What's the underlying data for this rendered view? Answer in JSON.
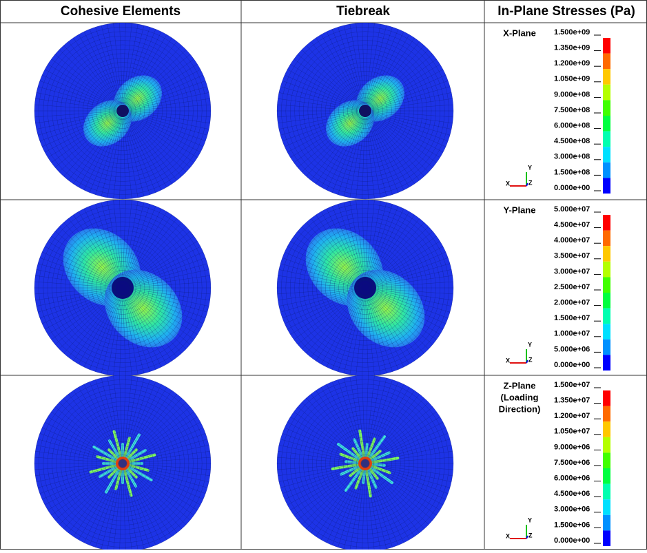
{
  "header": {
    "columns": [
      "Cohesive Elements",
      "Tiebreak",
      "In-Plane Stresses (Pa)"
    ]
  },
  "rows": [
    {
      "plane": [
        "X-Plane"
      ],
      "legend": [
        "1.500e+09",
        "1.350e+09",
        "1.200e+09",
        "1.050e+09",
        "9.000e+08",
        "7.500e+08",
        "6.000e+08",
        "4.500e+08",
        "3.000e+08",
        "1.500e+08",
        "0.000e+00"
      ]
    },
    {
      "plane": [
        "Y-Plane"
      ],
      "legend": [
        "5.000e+07",
        "4.500e+07",
        "4.000e+07",
        "3.500e+07",
        "3.000e+07",
        "2.500e+07",
        "2.000e+07",
        "1.500e+07",
        "1.000e+07",
        "5.000e+06",
        "0.000e+00"
      ]
    },
    {
      "plane": [
        "Z-Plane",
        "(Loading",
        "Direction)"
      ],
      "legend": [
        "1.500e+07",
        "1.350e+07",
        "1.200e+07",
        "1.050e+07",
        "9.000e+06",
        "7.500e+06",
        "6.000e+06",
        "4.500e+06",
        "3.000e+06",
        "1.500e+06",
        "0.000e+00"
      ]
    }
  ],
  "triad": {
    "x": "X",
    "y": "Y",
    "z": "Z"
  }
}
